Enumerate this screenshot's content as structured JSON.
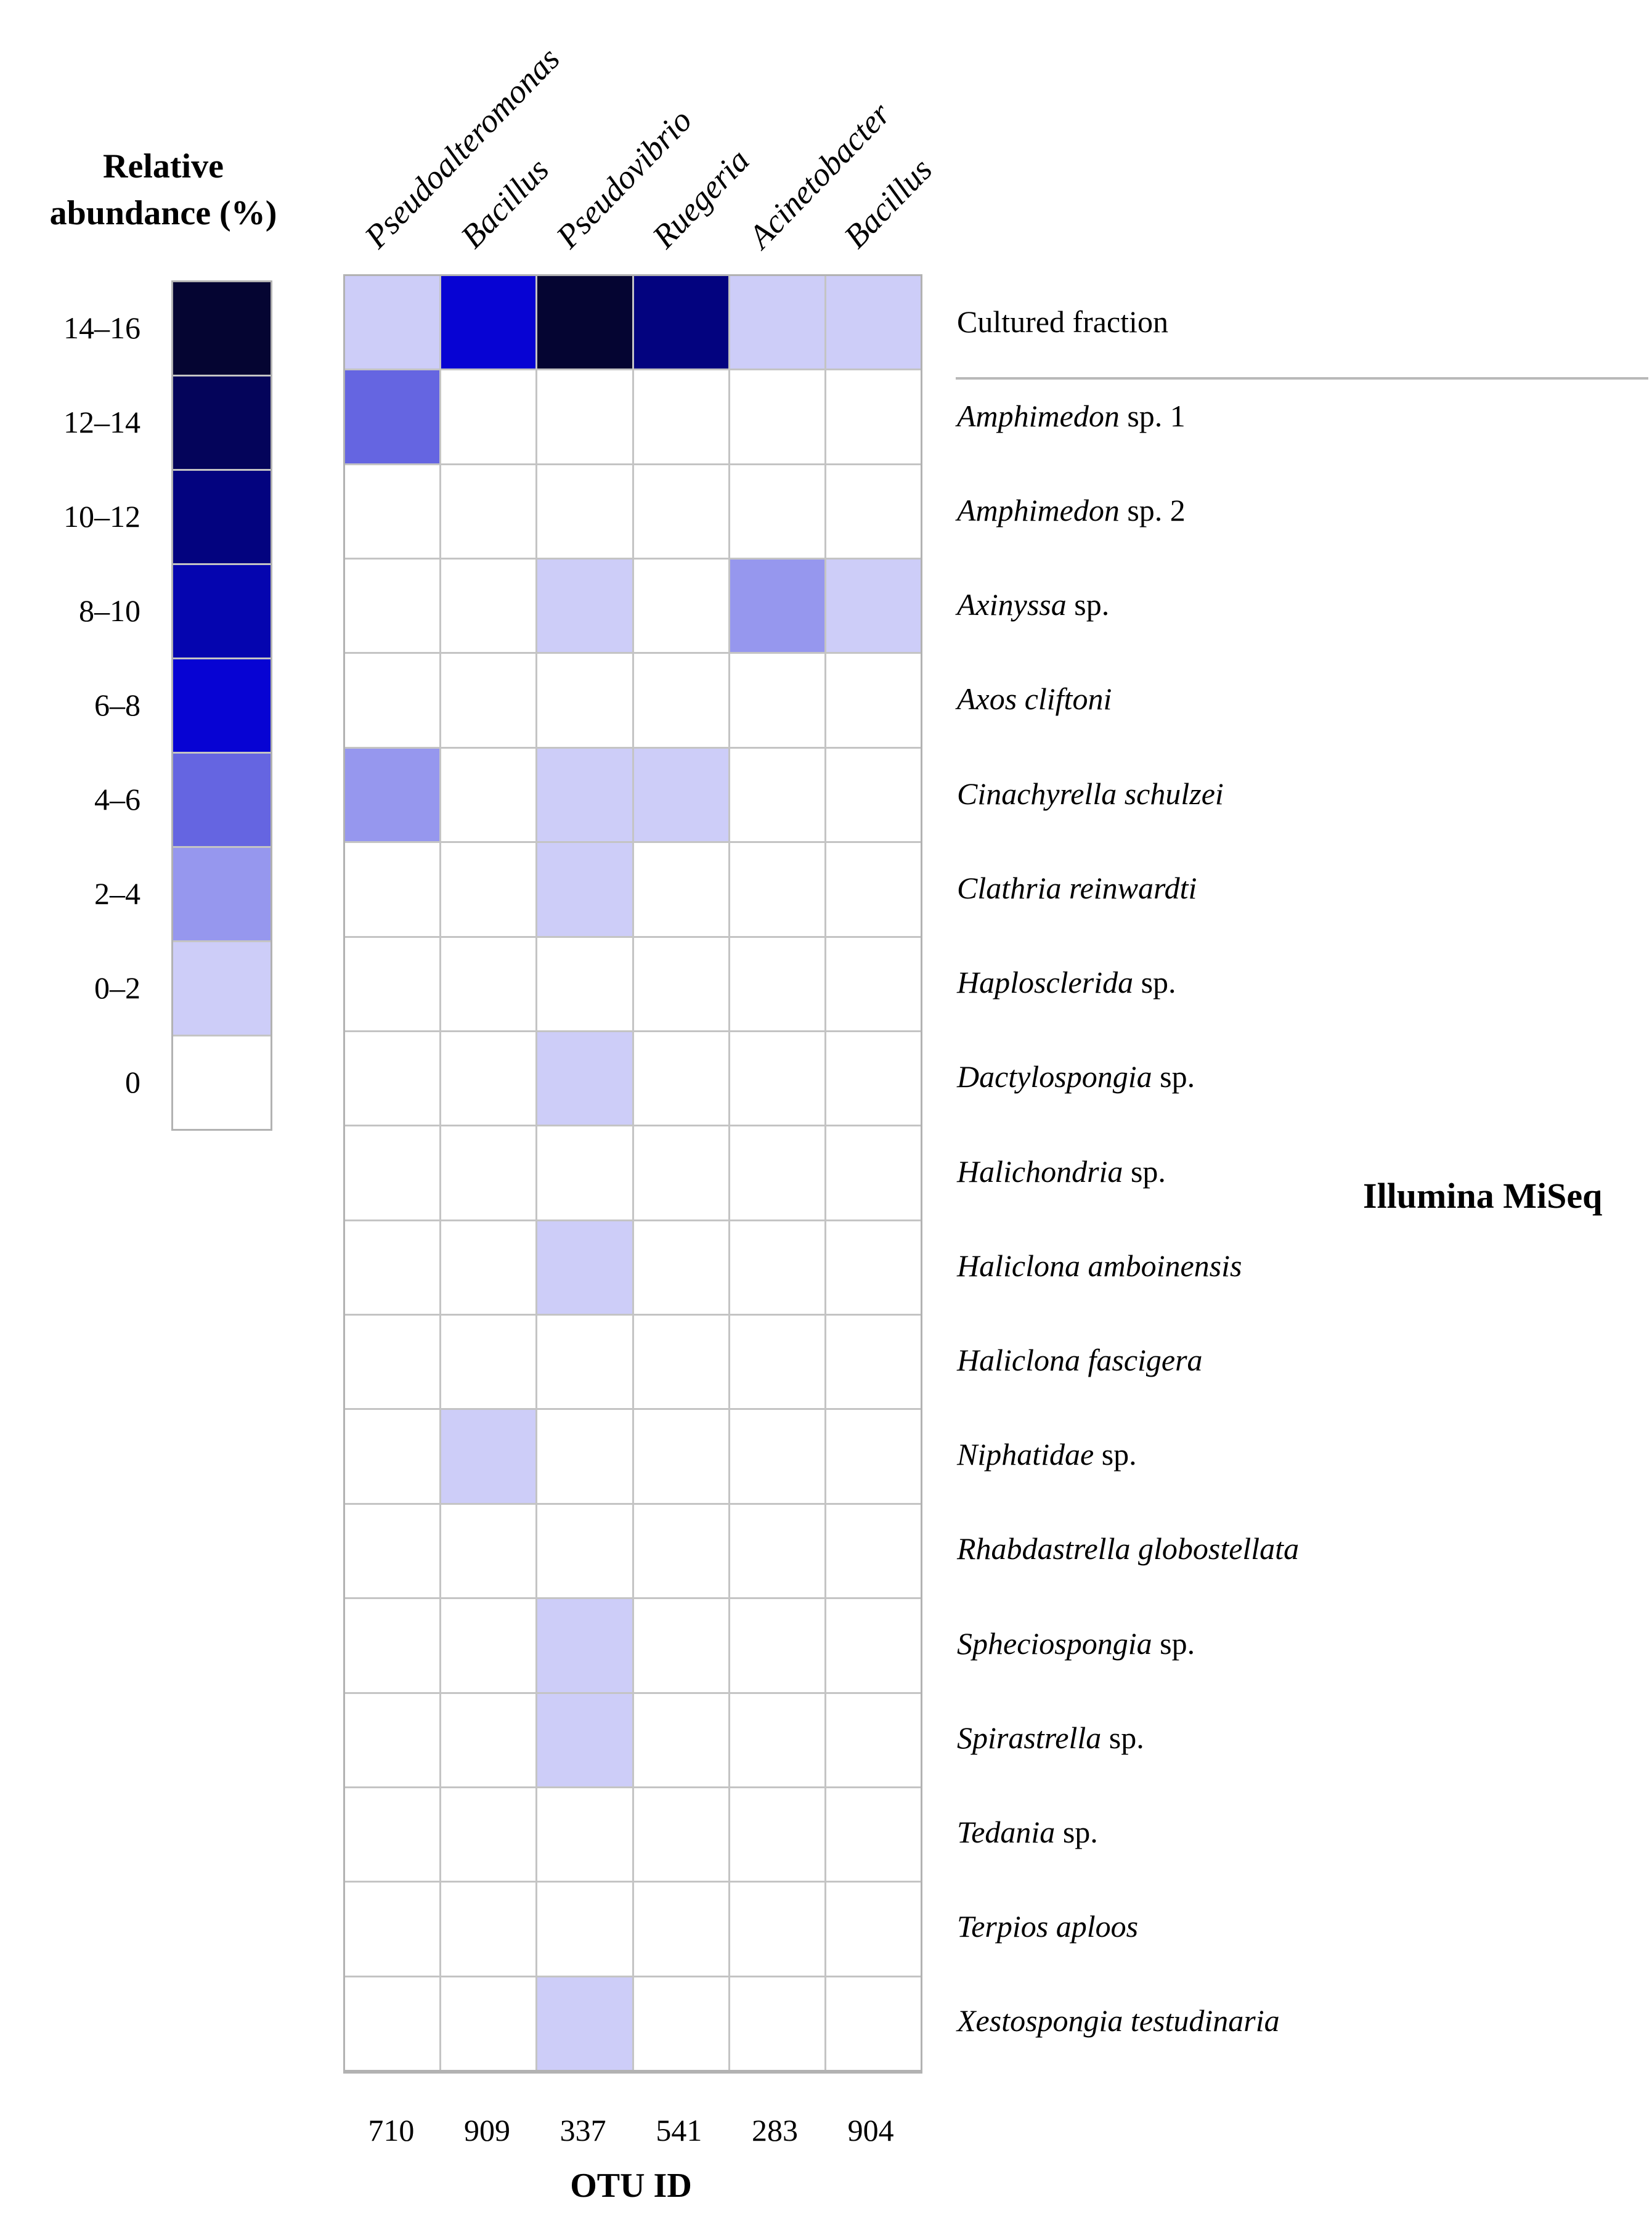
{
  "figure": {
    "legend_title_line1": "Relative",
    "legend_title_line2": "abundance (%)",
    "otu_axis_label": "OTU ID",
    "illumina_label": "Illumina MiSeq"
  },
  "legend": {
    "position": "left",
    "items": [
      {
        "label": "14–16",
        "range_key": "14-16"
      },
      {
        "label": "12–14",
        "range_key": "12-14"
      },
      {
        "label": "10–12",
        "range_key": "10-12"
      },
      {
        "label": "8–10",
        "range_key": "8-10"
      },
      {
        "label": "6–8",
        "range_key": "6-8"
      },
      {
        "label": "4–6",
        "range_key": "4-6"
      },
      {
        "label": "2–4",
        "range_key": "2-4"
      },
      {
        "label": "0–2",
        "range_key": "0-2"
      },
      {
        "label": "0",
        "range_key": "0"
      }
    ]
  },
  "palette": {
    "0": "#ffffff",
    "0-2": "#cdcdf8",
    "2-4": "#9697ee",
    "4-6": "#6565e1",
    "6-8": "#0703d3",
    "8-10": "#0505af",
    "10-12": "#03037f",
    "12-14": "#04045a",
    "14-16": "#050532"
  },
  "columns": [
    {
      "genus": "Pseudoalteromonas",
      "otu_id": "710"
    },
    {
      "genus": "Bacillus",
      "otu_id": "909"
    },
    {
      "genus": "Pseudovibrio",
      "otu_id": "337"
    },
    {
      "genus": "Ruegeria",
      "otu_id": "541"
    },
    {
      "genus": "Acinetobacter",
      "otu_id": "283"
    },
    {
      "genus": "Bacillus",
      "otu_id": "904"
    }
  ],
  "rows": [
    {
      "label_italic": "",
      "label_regular": "Cultured fraction",
      "cells": [
        "0-2",
        "6-8",
        "14-16",
        "10-12",
        "0-2",
        "0-2"
      ]
    },
    {
      "label_italic": "Amphimedon",
      "label_regular": " sp. 1",
      "cells": [
        "4-6",
        "0",
        "0",
        "0",
        "0",
        "0"
      ]
    },
    {
      "label_italic": "Amphimedon",
      "label_regular": " sp. 2",
      "cells": [
        "0",
        "0",
        "0",
        "0",
        "0",
        "0"
      ]
    },
    {
      "label_italic": "Axinyssa",
      "label_regular": " sp.",
      "cells": [
        "0",
        "0",
        "0-2",
        "0",
        "2-4",
        "0-2"
      ]
    },
    {
      "label_italic": "Axos cliftoni",
      "label_regular": "",
      "cells": [
        "0",
        "0",
        "0",
        "0",
        "0",
        "0"
      ]
    },
    {
      "label_italic": "Cinachyrella schulzei",
      "label_regular": "",
      "cells": [
        "2-4",
        "0",
        "0-2",
        "0-2",
        "0",
        "0"
      ]
    },
    {
      "label_italic": "Clathria reinwardti",
      "label_regular": "",
      "cells": [
        "0",
        "0",
        "0-2",
        "0",
        "0",
        "0"
      ]
    },
    {
      "label_italic": "Haplosclerida",
      "label_regular": " sp.",
      "cells": [
        "0",
        "0",
        "0",
        "0",
        "0",
        "0"
      ]
    },
    {
      "label_italic": "Dactylospongia",
      "label_regular": " sp.",
      "cells": [
        "0",
        "0",
        "0-2",
        "0",
        "0",
        "0"
      ]
    },
    {
      "label_italic": "Halichondria",
      "label_regular": " sp.",
      "cells": [
        "0",
        "0",
        "0",
        "0",
        "0",
        "0"
      ]
    },
    {
      "label_italic": "Haliclona amboinensis",
      "label_regular": "",
      "cells": [
        "0",
        "0",
        "0-2",
        "0",
        "0",
        "0"
      ]
    },
    {
      "label_italic": "Haliclona fascigera",
      "label_regular": "",
      "cells": [
        "0",
        "0",
        "0",
        "0",
        "0",
        "0"
      ]
    },
    {
      "label_italic": "Niphatidae",
      "label_regular": " sp.",
      "cells": [
        "0",
        "0-2",
        "0",
        "0",
        "0",
        "0"
      ]
    },
    {
      "label_italic": "Rhabdastrella globostellata",
      "label_regular": "",
      "cells": [
        "0",
        "0",
        "0",
        "0",
        "0",
        "0"
      ]
    },
    {
      "label_italic": "Spheciospongia",
      "label_regular": " sp.",
      "cells": [
        "0",
        "0",
        "0-2",
        "0",
        "0",
        "0"
      ]
    },
    {
      "label_italic": "Spirastrella",
      "label_regular": " sp.",
      "cells": [
        "0",
        "0",
        "0-2",
        "0",
        "0",
        "0"
      ]
    },
    {
      "label_italic": "Tedania",
      "label_regular": " sp.",
      "cells": [
        "0",
        "0",
        "0",
        "0",
        "0",
        "0"
      ]
    },
    {
      "label_italic": "Terpios aploos",
      "label_regular": "",
      "cells": [
        "0",
        "0",
        "0",
        "0",
        "0",
        "0"
      ]
    },
    {
      "label_italic": "Xestospongia testudinaria",
      "label_regular": "",
      "cells": [
        "0",
        "0",
        "0-2",
        "0",
        "0",
        "0"
      ]
    }
  ],
  "chart_data": {
    "type": "heatmap",
    "title": "Relative abundance (%)",
    "legend_title": "Relative abundance (%)",
    "legend_position": "left",
    "legend_bins": [
      "14–16",
      "12–14",
      "10–12",
      "8–10",
      "6–8",
      "4–6",
      "2–4",
      "0–2",
      "0"
    ],
    "x_axis_label": "OTU ID",
    "x_categories_genus": [
      "Pseudoalteromonas",
      "Bacillus",
      "Pseudovibrio",
      "Ruegeria",
      "Acinetobacter",
      "Bacillus"
    ],
    "x_categories_otu_id": [
      "710",
      "909",
      "337",
      "541",
      "283",
      "904"
    ],
    "y_categories": [
      "Cultured fraction",
      "Amphimedon sp. 1",
      "Amphimedon sp. 2",
      "Axinyssa sp.",
      "Axos cliftoni",
      "Cinachyrella schulzei",
      "Clathria reinwardti",
      "Haplosclerida sp.",
      "Dactylospongia sp.",
      "Halichondria sp.",
      "Haliclona amboinensis",
      "Haliclona fascigera",
      "Niphatidae sp.",
      "Rhabdastrella globostellata",
      "Spheciospongia sp.",
      "Spirastrella sp.",
      "Tedania sp.",
      "Terpios aploos",
      "Xestospongia testudinaria"
    ],
    "values_percent_range": [
      [
        "0-2",
        "6-8",
        "14-16",
        "10-12",
        "0-2",
        "0-2"
      ],
      [
        "4-6",
        "0",
        "0",
        "0",
        "0",
        "0"
      ],
      [
        "0",
        "0",
        "0",
        "0",
        "0",
        "0"
      ],
      [
        "0",
        "0",
        "0-2",
        "0",
        "2-4",
        "0-2"
      ],
      [
        "0",
        "0",
        "0",
        "0",
        "0",
        "0"
      ],
      [
        "2-4",
        "0",
        "0-2",
        "0-2",
        "0",
        "0"
      ],
      [
        "0",
        "0",
        "0-2",
        "0",
        "0",
        "0"
      ],
      [
        "0",
        "0",
        "0",
        "0",
        "0",
        "0"
      ],
      [
        "0",
        "0",
        "0-2",
        "0",
        "0",
        "0"
      ],
      [
        "0",
        "0",
        "0",
        "0",
        "0",
        "0"
      ],
      [
        "0",
        "0",
        "0-2",
        "0",
        "0",
        "0"
      ],
      [
        "0",
        "0",
        "0",
        "0",
        "0",
        "0"
      ],
      [
        "0",
        "0-2",
        "0",
        "0",
        "0",
        "0"
      ],
      [
        "0",
        "0",
        "0",
        "0",
        "0",
        "0"
      ],
      [
        "0",
        "0",
        "0-2",
        "0",
        "0",
        "0"
      ],
      [
        "0",
        "0",
        "0-2",
        "0",
        "0",
        "0"
      ],
      [
        "0",
        "0",
        "0",
        "0",
        "0",
        "0"
      ],
      [
        "0",
        "0",
        "0",
        "0",
        "0",
        "0"
      ],
      [
        "0",
        "0",
        "0-2",
        "0",
        "0",
        "0"
      ]
    ],
    "sections": {
      "row_1": "Cultured fraction",
      "rows_2_19": "Illumina MiSeq"
    },
    "grid": "on"
  }
}
